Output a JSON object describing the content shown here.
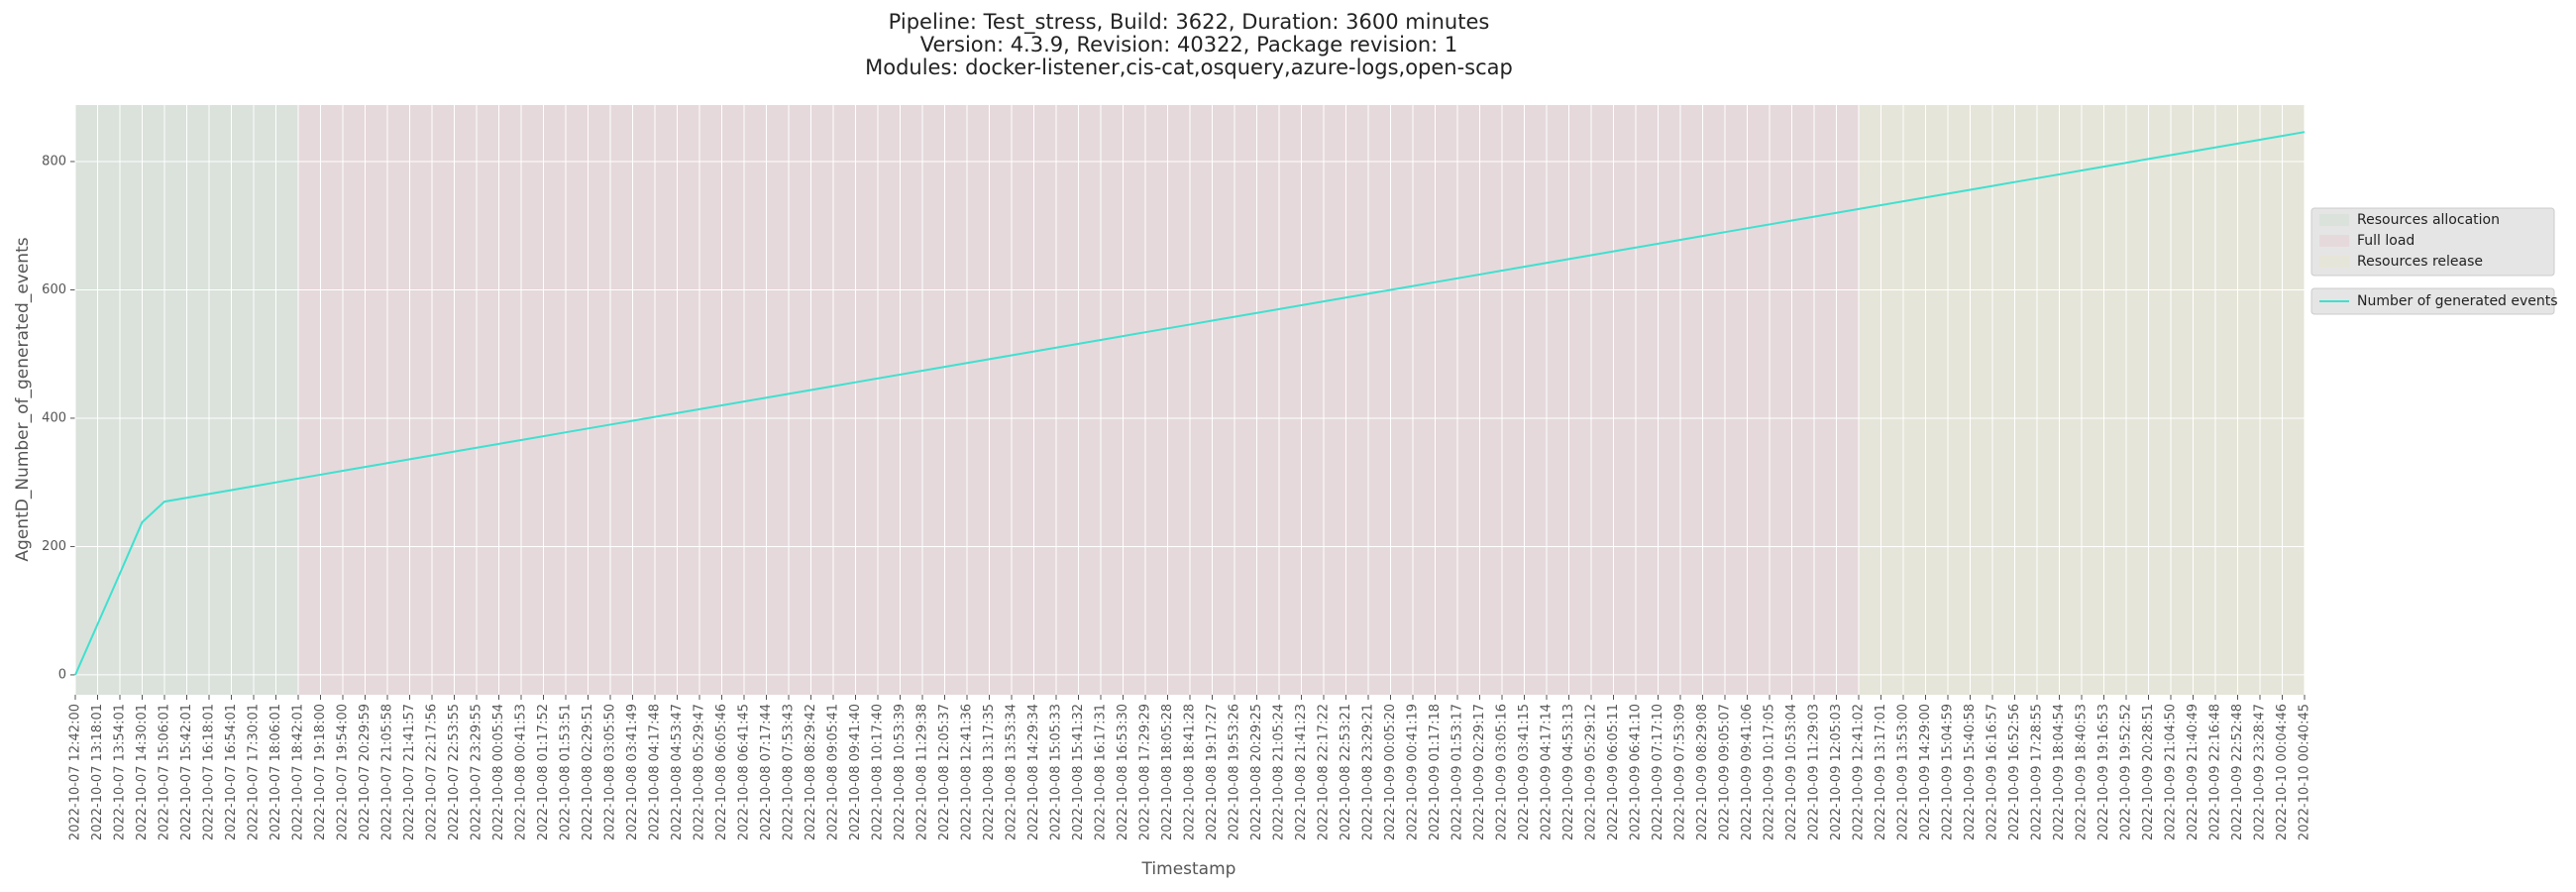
{
  "chart_data": {
    "type": "line",
    "title": [
      "Pipeline: Test_stress, Build: 3622, Duration: 3600 minutes",
      "Version: 4.3.9, Revision: 40322, Package revision: 1",
      "Modules: docker-listener,cis-cat,osquery,azure-logs,open-scap"
    ],
    "x_label": "Timestamp",
    "y_label": "AgentD_Number_of_generated_events",
    "categories": [
      "2022-10-07 12:42:00",
      "2022-10-07 13:18:01",
      "2022-10-07 13:54:01",
      "2022-10-07 14:30:01",
      "2022-10-07 15:06:01",
      "2022-10-07 15:42:01",
      "2022-10-07 16:18:01",
      "2022-10-07 16:54:01",
      "2022-10-07 17:30:01",
      "2022-10-07 18:06:01",
      "2022-10-07 18:42:01",
      "2022-10-07 19:18:00",
      "2022-10-07 19:54:00",
      "2022-10-07 20:29:59",
      "2022-10-07 21:05:58",
      "2022-10-07 21:41:57",
      "2022-10-07 22:17:56",
      "2022-10-07 22:53:55",
      "2022-10-07 23:29:55",
      "2022-10-08 00:05:54",
      "2022-10-08 00:41:53",
      "2022-10-08 01:17:52",
      "2022-10-08 01:53:51",
      "2022-10-08 02:29:51",
      "2022-10-08 03:05:50",
      "2022-10-08 03:41:49",
      "2022-10-08 04:17:48",
      "2022-10-08 04:53:47",
      "2022-10-08 05:29:47",
      "2022-10-08 06:05:46",
      "2022-10-08 06:41:45",
      "2022-10-08 07:17:44",
      "2022-10-08 07:53:43",
      "2022-10-08 08:29:42",
      "2022-10-08 09:05:41",
      "2022-10-08 09:41:40",
      "2022-10-08 10:17:40",
      "2022-10-08 10:53:39",
      "2022-10-08 11:29:38",
      "2022-10-08 12:05:37",
      "2022-10-08 12:41:36",
      "2022-10-08 13:17:35",
      "2022-10-08 13:53:34",
      "2022-10-08 14:29:34",
      "2022-10-08 15:05:33",
      "2022-10-08 15:41:32",
      "2022-10-08 16:17:31",
      "2022-10-08 16:53:30",
      "2022-10-08 17:29:29",
      "2022-10-08 18:05:28",
      "2022-10-08 18:41:28",
      "2022-10-08 19:17:27",
      "2022-10-08 19:53:26",
      "2022-10-08 20:29:25",
      "2022-10-08 21:05:24",
      "2022-10-08 21:41:23",
      "2022-10-08 22:17:22",
      "2022-10-08 22:53:21",
      "2022-10-08 23:29:21",
      "2022-10-09 00:05:20",
      "2022-10-09 00:41:19",
      "2022-10-09 01:17:18",
      "2022-10-09 01:53:17",
      "2022-10-09 02:29:17",
      "2022-10-09 03:05:16",
      "2022-10-09 03:41:15",
      "2022-10-09 04:17:14",
      "2022-10-09 04:53:13",
      "2022-10-09 05:29:12",
      "2022-10-09 06:05:11",
      "2022-10-09 06:41:10",
      "2022-10-09 07:17:10",
      "2022-10-09 07:53:09",
      "2022-10-09 08:29:08",
      "2022-10-09 09:05:07",
      "2022-10-09 09:41:06",
      "2022-10-09 10:17:05",
      "2022-10-09 10:53:04",
      "2022-10-09 11:29:03",
      "2022-10-09 12:05:03",
      "2022-10-09 12:41:02",
      "2022-10-09 13:17:01",
      "2022-10-09 13:53:00",
      "2022-10-09 14:29:00",
      "2022-10-09 15:04:59",
      "2022-10-09 15:40:58",
      "2022-10-09 16:16:57",
      "2022-10-09 16:52:56",
      "2022-10-09 17:28:55",
      "2022-10-09 18:04:54",
      "2022-10-09 18:40:53",
      "2022-10-09 19:16:53",
      "2022-10-09 19:52:52",
      "2022-10-09 20:28:51",
      "2022-10-09 21:04:50",
      "2022-10-09 21:40:49",
      "2022-10-09 22:16:48",
      "2022-10-09 22:52:48",
      "2022-10-09 23:28:47",
      "2022-10-10 00:04:46",
      "2022-10-10 00:40:45"
    ],
    "series": [
      {
        "name": "Number of generated events",
        "color": "#40e0d0",
        "values": [
          0,
          79,
          158,
          238,
          270,
          276,
          282,
          288,
          294,
          300,
          306,
          312,
          318,
          324,
          330,
          336,
          342,
          348,
          354,
          360,
          366,
          372,
          378,
          384,
          390,
          396,
          402,
          408,
          414,
          420,
          426,
          432,
          438,
          444,
          450,
          456,
          462,
          468,
          474,
          480,
          486,
          492,
          498,
          504,
          510,
          516,
          522,
          528,
          534,
          540,
          546,
          552,
          558,
          564,
          570,
          576,
          582,
          588,
          594,
          600,
          606,
          612,
          618,
          624,
          630,
          636,
          642,
          648,
          654,
          660,
          666,
          672,
          678,
          684,
          690,
          696,
          702,
          708,
          714,
          720,
          726,
          732,
          738,
          744,
          750,
          756,
          762,
          768,
          774,
          780,
          786,
          792,
          798,
          804,
          810,
          816,
          822,
          828,
          834,
          840,
          846
        ]
      }
    ],
    "spans": [
      {
        "name": "Resources allocation",
        "color": "#dae2db",
        "start": "2022-10-07 12:42:00",
        "end": "2022-10-07 18:42:01"
      },
      {
        "name": "Full load",
        "color": "#e6d9db",
        "start": "2022-10-07 18:42:01",
        "end": "2022-10-09 12:41:02"
      },
      {
        "name": "Resources release",
        "color": "#e6e5d9",
        "start": "2022-10-09 12:41:02",
        "end": "2022-10-10 00:40:45"
      }
    ],
    "ylim": [
      -31,
      888
    ],
    "yticks": [
      0,
      200,
      400,
      600,
      800
    ],
    "grid": true,
    "legend": "right"
  }
}
